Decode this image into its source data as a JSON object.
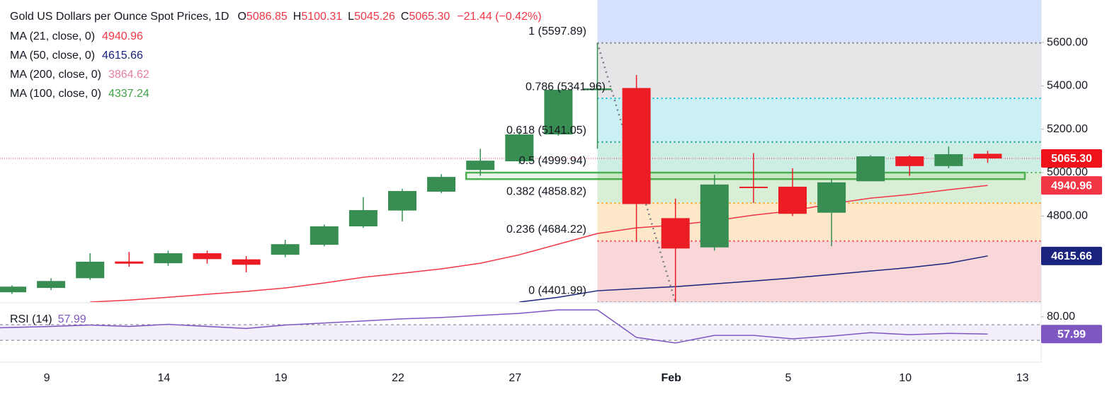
{
  "header": {
    "title": "Gold US Dollars per Ounce Spot Prices, 1D",
    "ohlc": [
      {
        "key": "O",
        "value": 5086.85
      },
      {
        "key": "H",
        "value": 5100.31
      },
      {
        "key": "L",
        "value": 5045.26
      },
      {
        "key": "C",
        "value": 5065.3,
        "label": "5065.30"
      }
    ],
    "change": "−21.44 (−0.42%)",
    "change_color": "#f23645"
  },
  "chart_data": [
    {
      "type": "candlestick",
      "categories": [
        null,
        "9",
        null,
        null,
        "14",
        null,
        null,
        "19",
        null,
        null,
        "22",
        null,
        null,
        "27",
        null,
        null,
        null,
        "Feb",
        null,
        null,
        "5",
        null,
        null,
        "10",
        null,
        null,
        "13"
      ],
      "open": [
        4448,
        4468,
        4513,
        4590,
        4582,
        4628,
        4600,
        4621,
        4667,
        4752,
        4825,
        4912,
        5012,
        5052,
        5176,
        5380,
        5390,
        4790,
        4655,
        4935,
        4935,
        4815,
        4960,
        5075,
        5030,
        5086.85,
        null
      ],
      "high": [
        4480,
        4513,
        4628,
        4634,
        4640,
        4640,
        4615,
        4690,
        4760,
        4887,
        4925,
        4993,
        5110,
        5190,
        5395,
        5597.89,
        5450,
        4880,
        4990,
        5090,
        5020,
        4970,
        5080,
        5080,
        5120,
        5100.31,
        null
      ],
      "low": [
        4440,
        4458,
        4505,
        4566,
        4570,
        4580,
        4540,
        4610,
        4660,
        4745,
        4775,
        4905,
        4985,
        5040,
        5170,
        5110,
        4680,
        4401.99,
        4640,
        4860,
        4800,
        4660,
        4960,
        4985,
        5020,
        5045.26,
        null
      ],
      "close": [
        4474,
        4500,
        4589,
        4580,
        4628,
        4601,
        4575,
        4670,
        4752,
        4827,
        4915,
        4980,
        5055,
        5176,
        5382,
        5388,
        4855,
        4650,
        4945,
        4932,
        4810,
        4955,
        5075,
        5030,
        5085,
        5065.3,
        null
      ],
      "up_color": "#388e52",
      "down_color": "#eb1c24",
      "ylim": [
        4403,
        5796
      ],
      "yticks": [
        {
          "value": 5600,
          "label": "5600.00"
        },
        {
          "value": 5400,
          "label": "5400.00"
        },
        {
          "value": 5200,
          "label": "5200.00"
        },
        {
          "value": 5000,
          "label": "5000.00"
        },
        {
          "value": 4800,
          "label": "4800.00"
        }
      ],
      "series": [
        {
          "name": "MA (21, close, 0)",
          "legend_value": 4940.96,
          "color": "#f23645",
          "values": [
            null,
            null,
            4403,
            4412,
            4425,
            4439,
            4452,
            4468,
            4491,
            4517,
            4536,
            4556,
            4582,
            4621,
            4670,
            4719,
            4745,
            4758,
            4778,
            4804,
            4824,
            4856,
            4882,
            4899,
            4921,
            4940.96,
            null
          ]
        },
        {
          "name": "MA (50, close, 0)",
          "legend_value": 4615.66,
          "color": "#1a237e",
          "values": [
            null,
            null,
            null,
            null,
            null,
            null,
            null,
            null,
            null,
            null,
            null,
            null,
            null,
            4403,
            4425,
            4455,
            4465,
            4474,
            4487,
            4500,
            4514,
            4530,
            4546,
            4562,
            4582,
            4615.66,
            null
          ]
        },
        {
          "name": "MA (200, close, 0)",
          "legend_value": 3864.62,
          "color": "#e57fa5",
          "values": [
            null,
            null,
            null,
            null,
            null,
            null,
            null,
            null,
            null,
            null,
            null,
            null,
            null,
            null,
            null,
            null,
            null,
            null,
            null,
            null,
            null,
            null,
            null,
            null,
            null,
            null,
            null
          ]
        },
        {
          "name": "MA (100, close, 0)",
          "legend_value": 4337.24,
          "color": "#43a047",
          "values": [
            null,
            null,
            null,
            null,
            null,
            null,
            null,
            null,
            null,
            null,
            null,
            null,
            null,
            null,
            null,
            null,
            null,
            null,
            null,
            null,
            null,
            null,
            null,
            null,
            null,
            null,
            null
          ]
        }
      ],
      "fib_levels": [
        {
          "ratio": 1,
          "value": 5597.89,
          "label": "1 (5597.89)",
          "color": "#787b86",
          "fill": "#d6e0ff"
        },
        {
          "ratio": 0.786,
          "value": 5341.96,
          "label": "0.786 (5341.96)",
          "color": "#00bcd4",
          "fill": "#e6e6e8"
        },
        {
          "ratio": 0.618,
          "value": 5141.05,
          "label": "0.618 (5141.05)",
          "color": "#089981",
          "fill": "#cbf0f3"
        },
        {
          "ratio": 0.5,
          "value": 4999.94,
          "label": "0.5 (4999.94)",
          "color": "#4caf50",
          "fill": "#cdeee5"
        },
        {
          "ratio": 0.382,
          "value": 4858.82,
          "label": "0.382 (4858.82)",
          "color": "#ff9800",
          "fill": "#d9efd5"
        },
        {
          "ratio": 0.236,
          "value": 4684.22,
          "label": "0.236 (4684.22)",
          "color": "#f23645",
          "fill": "#fde9ca"
        },
        {
          "ratio": 0,
          "value": 4401.99,
          "label": "0 (4401.99)",
          "color": "#787b86",
          "fill": "#f9d6d7"
        }
      ],
      "support_zone": {
        "top": 5000,
        "bottom": 4970,
        "color": "#4caf50"
      },
      "price_tags": [
        {
          "value": 5065.3,
          "label": "5065.30",
          "color": "#f0121b"
        },
        {
          "value": 4940.96,
          "label": "4940.96",
          "color": "#f23645"
        },
        {
          "value": 4615.66,
          "label": "4615.66",
          "color": "#1a237e"
        }
      ]
    },
    {
      "type": "line",
      "name": "RSI (14)",
      "color": "#7e57c2",
      "values": [
        66.0,
        67.7,
        69.5,
        67.7,
        70.4,
        67.7,
        65.1,
        69.5,
        72.1,
        74.7,
        77.4,
        79.1,
        81.8,
        84.4,
        88.8,
        88.8,
        53.7,
        46.7,
        56.3,
        56.3,
        51.9,
        55.4,
        59.8,
        57.2,
        58.9,
        57.99,
        null
      ],
      "ylim": [
        24,
        97
      ],
      "yticks": [
        {
          "value": 80,
          "label": "80.00"
        }
      ],
      "bands": [
        70,
        50
      ],
      "band_fill": "#f2eefa"
    }
  ]
}
